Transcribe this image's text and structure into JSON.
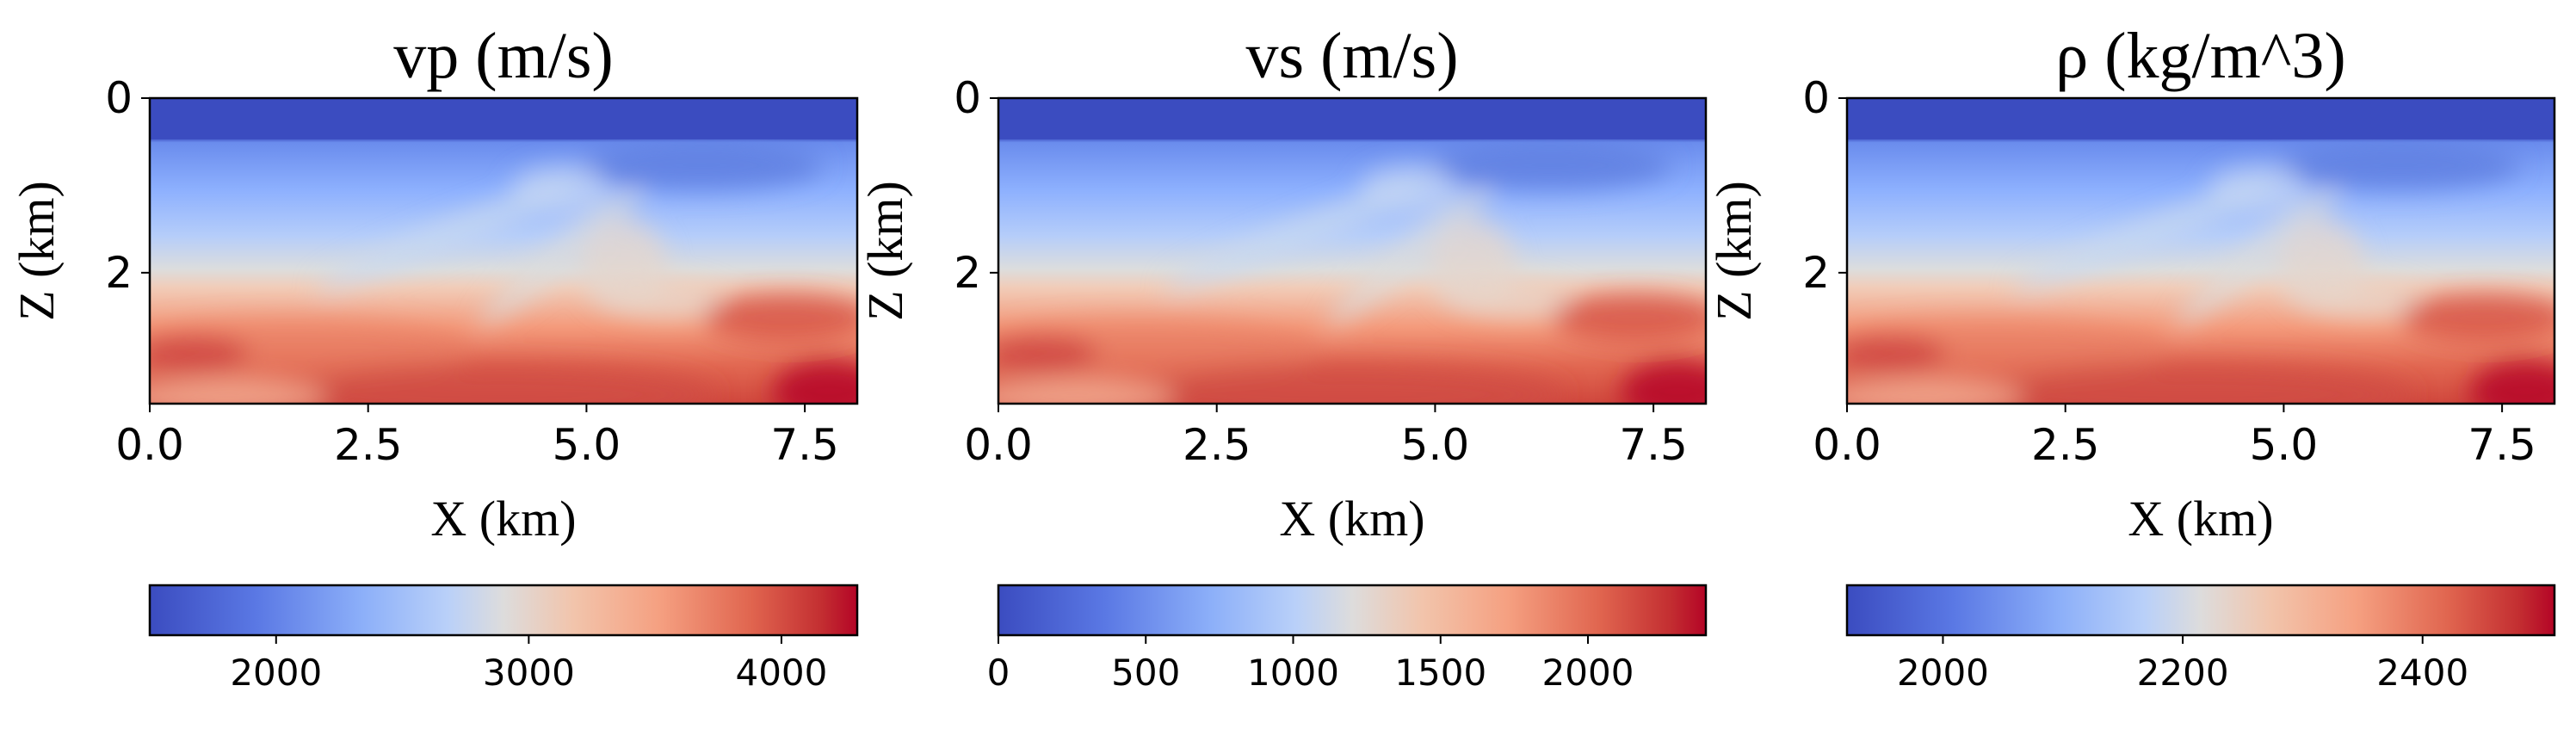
{
  "chart_data": [
    {
      "type": "heatmap",
      "title": "vp (m/s)",
      "xlabel": "X (km)",
      "ylabel": "Z (km)",
      "xlim": [
        0,
        8.1
      ],
      "ylim": [
        3.5,
        0
      ],
      "xticks": [
        "0.0",
        "2.5",
        "5.0",
        "7.5"
      ],
      "yticks": [
        "0",
        "2"
      ],
      "colorbar": {
        "range": [
          1500,
          4300
        ],
        "ticks": [
          2000,
          3000,
          4000
        ]
      }
    },
    {
      "type": "heatmap",
      "title": "vs (m/s)",
      "xlabel": "X (km)",
      "ylabel": "Z (km)",
      "xlim": [
        0,
        8.1
      ],
      "ylim": [
        3.5,
        0
      ],
      "xticks": [
        "0.0",
        "2.5",
        "5.0",
        "7.5"
      ],
      "yticks": [
        "0",
        "2"
      ],
      "colorbar": {
        "range": [
          0,
          2400
        ],
        "ticks": [
          0,
          500,
          1000,
          1500,
          2000
        ]
      }
    },
    {
      "type": "heatmap",
      "title": "ρ (kg/m^3)",
      "xlabel": "X (km)",
      "ylabel": "Z (km)",
      "xlim": [
        0,
        8.1
      ],
      "ylim": [
        3.5,
        0
      ],
      "xticks": [
        "0.0",
        "2.5",
        "5.0",
        "7.5"
      ],
      "yticks": [
        "0",
        "2"
      ],
      "colorbar": {
        "range": [
          1920,
          2510
        ],
        "ticks": [
          2000,
          2200,
          2400
        ]
      }
    }
  ],
  "colormap": "coolwarm",
  "colors": {
    "low": "#3b4cc0",
    "mid": "#dddddd",
    "high": "#b40426"
  }
}
